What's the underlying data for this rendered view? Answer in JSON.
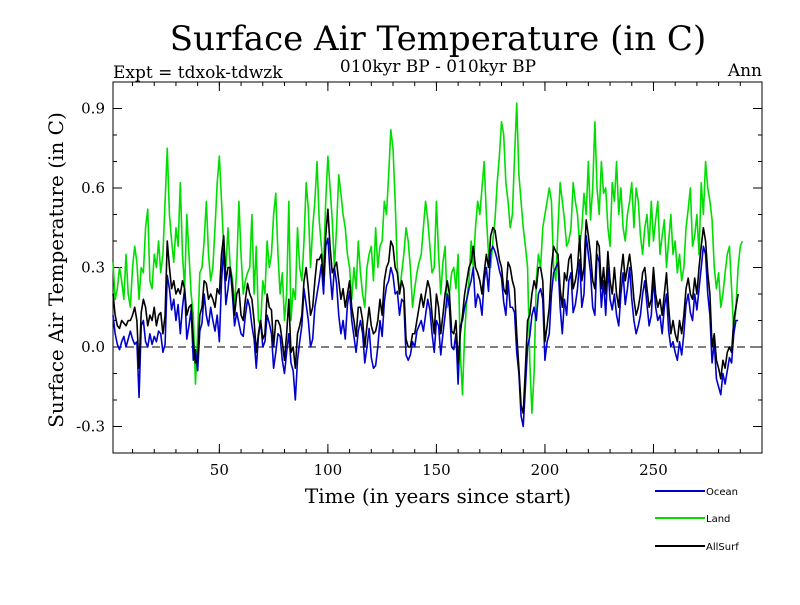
{
  "chart_data": {
    "type": "line",
    "title": "Surface Air Temperature (in C)",
    "subtitle": "010kyr BP - 010kyr BP",
    "left_label": "Expt = tdxok-tdwzk",
    "right_label": "Ann",
    "xlabel": "Time (in years since start)",
    "ylabel": "Surface Air Temperature (in C)",
    "xlim": [
      1,
      300
    ],
    "ylim": [
      -0.4,
      1.0
    ],
    "x_ticks": [
      50,
      100,
      150,
      200,
      250
    ],
    "x_tick_labels": [
      "50",
      "100",
      "150",
      "200",
      "250"
    ],
    "y_ticks": [
      -0.3,
      0.0,
      0.3,
      0.6,
      0.9
    ],
    "y_tick_labels": [
      "-0.3",
      "0.0",
      "0.3",
      "0.6",
      "0.9"
    ],
    "zero_line": "dashed",
    "grid": false,
    "legend_position": "bottom-right",
    "x_start": 1,
    "x_step": 1,
    "series": [
      {
        "name": "Ocean",
        "color": "#0000cc",
        "values": [
          0.12,
          0.05,
          0.01,
          -0.01,
          0.02,
          0.04,
          0.0,
          0.03,
          0.06,
          0.03,
          0.01,
          0.02,
          -0.19,
          0.08,
          0.1,
          0.02,
          0.0,
          0.05,
          0.01,
          0.04,
          0.02,
          0.06,
          0.05,
          -0.02,
          0.01,
          0.27,
          0.22,
          0.14,
          0.18,
          0.1,
          0.16,
          0.05,
          0.15,
          0.22,
          0.03,
          0.08,
          0.14,
          -0.05,
          -0.01,
          -0.09,
          0.06,
          0.09,
          0.2,
          0.12,
          0.08,
          0.15,
          0.1,
          0.06,
          0.12,
          0.02,
          0.25,
          0.37,
          0.16,
          0.22,
          0.3,
          0.2,
          0.08,
          0.13,
          0.09,
          0.05,
          0.04,
          0.12,
          0.18,
          0.15,
          0.08,
          0.03,
          -0.08,
          0.04,
          0.1,
          0.0,
          0.02,
          0.12,
          0.09,
          0.05,
          -0.08,
          -0.02,
          0.05,
          0.04,
          -0.05,
          -0.1,
          -0.02,
          0.05,
          -0.06,
          -0.09,
          -0.2,
          -0.05,
          0.02,
          0.08,
          0.22,
          0.16,
          0.1,
          0.0,
          0.03,
          0.15,
          0.2,
          0.25,
          0.31,
          0.2,
          0.38,
          0.41,
          0.28,
          0.18,
          0.3,
          0.24,
          0.12,
          0.05,
          0.1,
          0.03,
          0.16,
          0.21,
          0.1,
          0.04,
          -0.02,
          0.06,
          0.1,
          0.05,
          -0.06,
          0.0,
          0.07,
          -0.04,
          -0.08,
          -0.07,
          0.0,
          0.1,
          0.04,
          0.17,
          0.23,
          0.25,
          0.3,
          0.27,
          0.2,
          0.21,
          0.12,
          0.18,
          0.17,
          -0.03,
          -0.05,
          -0.03,
          0.02,
          0.0,
          0.06,
          0.08,
          0.1,
          0.06,
          0.12,
          0.18,
          0.14,
          0.05,
          -0.02,
          0.1,
          0.08,
          -0.03,
          0.05,
          0.12,
          0.2,
          0.15,
          0.0,
          -0.01,
          0.05,
          -0.14,
          0.08,
          0.1,
          0.15,
          0.18,
          0.22,
          0.25,
          0.3,
          0.15,
          0.2,
          0.18,
          0.12,
          0.25,
          0.3,
          0.21,
          0.36,
          0.38,
          0.36,
          0.33,
          0.29,
          0.26,
          0.17,
          0.12,
          0.25,
          0.15,
          0.15,
          0.13,
          -0.02,
          -0.1,
          -0.26,
          -0.3,
          -0.15,
          0.0,
          0.04,
          0.12,
          0.15,
          0.1,
          0.2,
          0.22,
          0.18,
          -0.05,
          0.02,
          0.05,
          0.2,
          0.28,
          0.3,
          0.32,
          0.15,
          0.05,
          0.18,
          0.12,
          0.25,
          0.28,
          0.13,
          0.16,
          0.22,
          0.33,
          0.15,
          0.2,
          0.42,
          0.35,
          0.28,
          0.15,
          0.12,
          0.35,
          0.32,
          0.15,
          0.25,
          0.12,
          0.3,
          0.18,
          0.14,
          0.2,
          0.12,
          0.08,
          0.2,
          0.28,
          0.16,
          0.22,
          0.3,
          0.18,
          0.1,
          0.05,
          0.08,
          0.12,
          0.2,
          0.25,
          0.16,
          0.08,
          0.12,
          0.26,
          0.15,
          0.1,
          0.12,
          0.05,
          0.15,
          0.2,
          0.06,
          0.0,
          0.02,
          -0.02,
          -0.05,
          0.02,
          -0.03,
          0.05,
          0.16,
          0.2,
          0.13,
          0.1,
          0.2,
          0.14,
          0.22,
          0.3,
          0.38,
          0.35,
          0.2,
          0.12,
          -0.06,
          0.02,
          -0.12,
          -0.15,
          -0.18,
          -0.1,
          -0.14,
          -0.09,
          -0.04,
          -0.06,
          0.05,
          0.1,
          0.1
        ]
      },
      {
        "name": "Land",
        "color": "#00dd00",
        "values": [
          0.32,
          0.18,
          0.22,
          0.3,
          0.25,
          0.18,
          0.35,
          0.2,
          0.15,
          0.3,
          0.38,
          0.32,
          0.18,
          0.3,
          0.28,
          0.45,
          0.52,
          0.25,
          0.22,
          0.35,
          0.3,
          0.4,
          0.28,
          0.35,
          0.55,
          0.75,
          0.5,
          0.4,
          0.32,
          0.45,
          0.38,
          0.62,
          0.35,
          0.22,
          0.5,
          0.35,
          0.2,
          0.12,
          -0.14,
          0.05,
          0.28,
          0.3,
          0.4,
          0.55,
          0.35,
          0.25,
          0.3,
          0.45,
          0.62,
          0.72,
          0.55,
          0.38,
          0.3,
          0.45,
          0.3,
          0.26,
          0.15,
          0.3,
          0.55,
          0.35,
          0.2,
          0.25,
          0.28,
          0.3,
          0.5,
          0.2,
          0.38,
          0.1,
          0.08,
          0.25,
          0.2,
          0.4,
          0.3,
          0.35,
          0.5,
          0.58,
          0.35,
          0.2,
          0.28,
          0.1,
          0.2,
          0.55,
          0.1,
          0.22,
          0.18,
          0.45,
          0.3,
          0.25,
          0.4,
          0.62,
          0.52,
          0.3,
          0.45,
          0.55,
          0.7,
          0.48,
          0.38,
          0.3,
          0.55,
          0.72,
          0.6,
          0.48,
          0.3,
          0.45,
          0.65,
          0.58,
          0.5,
          0.45,
          0.35,
          0.3,
          0.18,
          0.3,
          0.22,
          0.4,
          0.28,
          0.2,
          0.15,
          0.3,
          0.35,
          0.38,
          0.25,
          0.45,
          0.3,
          0.38,
          0.4,
          0.55,
          0.5,
          0.65,
          0.82,
          0.75,
          0.55,
          0.3,
          0.2,
          0.28,
          0.35,
          0.45,
          0.4,
          0.3,
          0.15,
          0.22,
          0.28,
          0.32,
          0.35,
          0.45,
          0.55,
          0.48,
          0.38,
          0.28,
          0.3,
          0.55,
          0.35,
          0.2,
          0.32,
          0.38,
          0.15,
          0.2,
          0.28,
          0.3,
          0.22,
          0.35,
          -0.02,
          -0.18,
          0.05,
          0.18,
          0.25,
          0.4,
          0.3,
          0.45,
          0.55,
          0.5,
          0.6,
          0.7,
          0.5,
          0.35,
          0.3,
          0.4,
          0.48,
          0.62,
          0.72,
          0.85,
          0.8,
          0.62,
          0.55,
          0.45,
          0.5,
          0.72,
          0.92,
          0.65,
          0.55,
          0.45,
          0.38,
          0.3,
          -0.05,
          -0.25,
          -0.1,
          0.25,
          0.35,
          0.3,
          0.45,
          0.5,
          0.55,
          0.6,
          0.55,
          0.3,
          0.25,
          0.45,
          0.62,
          0.55,
          0.48,
          0.38,
          0.4,
          0.45,
          0.62,
          0.55,
          0.5,
          0.38,
          0.45,
          0.58,
          0.5,
          0.7,
          0.48,
          0.6,
          0.85,
          0.6,
          0.5,
          0.7,
          0.58,
          0.6,
          0.45,
          0.38,
          0.62,
          0.55,
          0.7,
          0.5,
          0.6,
          0.45,
          0.4,
          0.5,
          0.55,
          0.62,
          0.45,
          0.6,
          0.55,
          0.42,
          0.35,
          0.45,
          0.5,
          0.38,
          0.55,
          0.4,
          0.48,
          0.55,
          0.35,
          0.42,
          0.48,
          0.3,
          0.4,
          0.5,
          0.35,
          0.4,
          0.28,
          0.35,
          0.25,
          0.3,
          0.45,
          0.52,
          0.6,
          0.38,
          0.42,
          0.5,
          0.35,
          0.62,
          0.5,
          0.7,
          0.6,
          0.55,
          0.48,
          0.3,
          0.22,
          0.28,
          0.15,
          0.2,
          0.28,
          0.35,
          0.38,
          0.22,
          0.05,
          0.15,
          0.3,
          0.38,
          0.4
        ]
      },
      {
        "name": "AllSurf",
        "color": "#000000",
        "values": [
          0.2,
          0.12,
          0.08,
          0.07,
          0.1,
          0.09,
          0.08,
          0.1,
          0.1,
          0.12,
          0.15,
          0.1,
          -0.08,
          0.13,
          0.18,
          0.15,
          0.08,
          0.12,
          0.1,
          0.15,
          0.08,
          0.12,
          0.13,
          0.05,
          0.12,
          0.4,
          0.3,
          0.22,
          0.25,
          0.2,
          0.22,
          0.2,
          0.25,
          0.22,
          0.12,
          0.15,
          0.16,
          0.02,
          -0.06,
          -0.05,
          0.12,
          0.15,
          0.25,
          0.24,
          0.18,
          0.2,
          0.18,
          0.15,
          0.22,
          0.2,
          0.35,
          0.42,
          0.25,
          0.3,
          0.3,
          0.23,
          0.12,
          0.2,
          0.22,
          0.12,
          0.1,
          0.18,
          0.24,
          0.2,
          0.18,
          0.1,
          -0.02,
          0.05,
          0.1,
          0.03,
          0.05,
          0.2,
          0.15,
          0.14,
          0.0,
          0.1,
          0.1,
          0.08,
          0.02,
          -0.05,
          0.05,
          0.18,
          -0.02,
          0.0,
          -0.08,
          0.05,
          0.08,
          0.12,
          0.25,
          0.3,
          0.22,
          0.12,
          0.15,
          0.25,
          0.33,
          0.33,
          0.35,
          0.25,
          0.42,
          0.52,
          0.38,
          0.28,
          0.3,
          0.32,
          0.25,
          0.18,
          0.22,
          0.15,
          0.2,
          0.25,
          0.15,
          0.1,
          0.04,
          0.15,
          0.15,
          0.1,
          0.0,
          0.08,
          0.15,
          0.08,
          0.05,
          0.06,
          0.1,
          0.18,
          0.12,
          0.25,
          0.3,
          0.32,
          0.4,
          0.38,
          0.3,
          0.28,
          0.2,
          0.25,
          0.22,
          0.03,
          0.0,
          0.0,
          0.05,
          0.05,
          0.1,
          0.15,
          0.2,
          0.15,
          0.2,
          0.25,
          0.22,
          0.12,
          0.05,
          0.2,
          0.15,
          0.05,
          0.12,
          0.2,
          0.25,
          0.2,
          0.06,
          0.05,
          0.1,
          -0.06,
          0.05,
          0.12,
          0.2,
          0.25,
          0.3,
          0.32,
          0.38,
          0.3,
          0.28,
          0.25,
          0.2,
          0.28,
          0.35,
          0.3,
          0.42,
          0.45,
          0.44,
          0.38,
          0.33,
          0.3,
          0.22,
          0.2,
          0.32,
          0.3,
          0.25,
          0.22,
          0.05,
          -0.08,
          -0.22,
          -0.25,
          -0.08,
          0.1,
          0.12,
          0.2,
          0.25,
          0.22,
          0.3,
          0.3,
          0.25,
          0.02,
          0.08,
          0.15,
          0.3,
          0.38,
          0.36,
          0.35,
          0.22,
          0.15,
          0.28,
          0.25,
          0.33,
          0.35,
          0.22,
          0.25,
          0.3,
          0.42,
          0.25,
          0.3,
          0.48,
          0.42,
          0.35,
          0.25,
          0.22,
          0.4,
          0.38,
          0.22,
          0.3,
          0.2,
          0.36,
          0.25,
          0.2,
          0.3,
          0.2,
          0.15,
          0.28,
          0.35,
          0.25,
          0.3,
          0.35,
          0.28,
          0.18,
          0.12,
          0.15,
          0.2,
          0.28,
          0.3,
          0.22,
          0.15,
          0.18,
          0.3,
          0.2,
          0.15,
          0.18,
          0.12,
          0.2,
          0.28,
          0.15,
          0.05,
          0.1,
          0.05,
          0.02,
          0.1,
          0.05,
          0.12,
          0.22,
          0.26,
          0.2,
          0.18,
          0.26,
          0.2,
          0.3,
          0.38,
          0.45,
          0.4,
          0.28,
          0.2,
          0.0,
          0.05,
          -0.05,
          -0.08,
          -0.12,
          -0.05,
          -0.08,
          -0.02,
          0.0,
          -0.02,
          0.1,
          0.15,
          0.2
        ]
      }
    ]
  }
}
